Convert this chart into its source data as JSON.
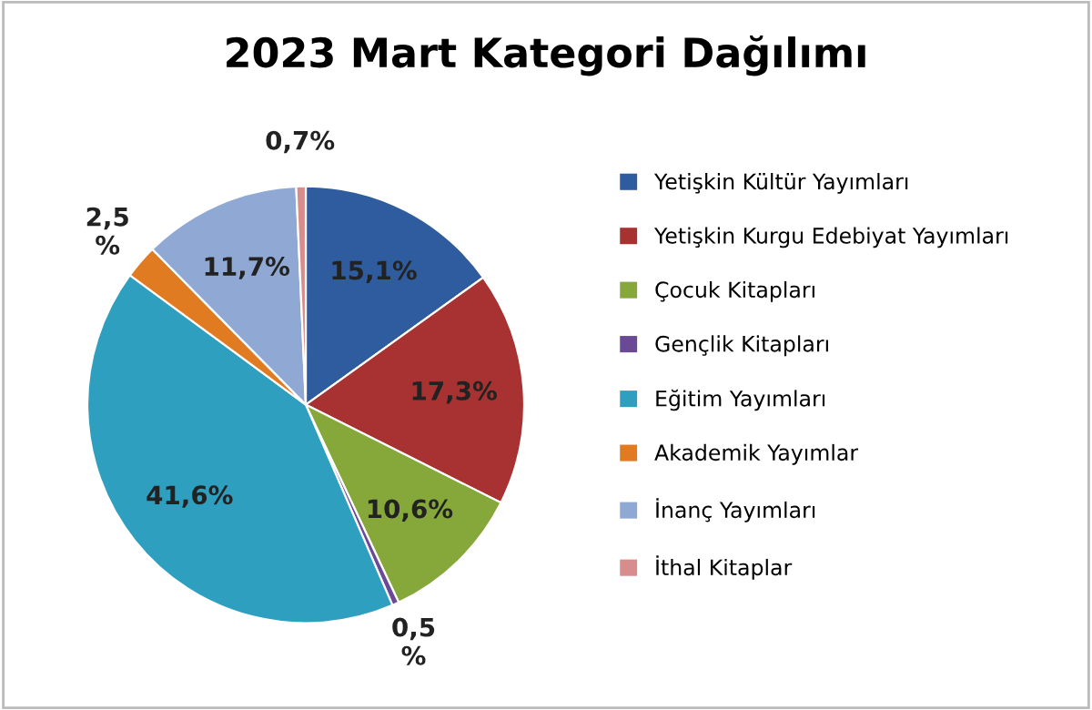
{
  "chart_data": {
    "type": "pie",
    "title": "2023 Mart Kategori Dağılımı",
    "categories": [
      "Yetişkin Kültür Yayımları",
      "Yetişkin Kurgu Edebiyat Yayımları",
      "Çocuk Kitapları",
      "Gençlik Kitapları",
      "Eğitim Yayımları",
      "Akademik Yayımlar",
      "İnanç Yayımları",
      "İthal Kitaplar"
    ],
    "values": [
      15.1,
      17.3,
      10.6,
      0.5,
      41.6,
      2.5,
      11.7,
      0.7
    ],
    "colors": [
      "#2e5c9e",
      "#a83232",
      "#86a83a",
      "#6a4a96",
      "#2f9fbf",
      "#e07b22",
      "#8fa9d4",
      "#d98c8c"
    ],
    "value_labels": [
      "15,1%",
      "17,3%",
      "10,6%",
      "0,5\n%",
      "41,6%",
      "2,5\n%",
      "11,7%",
      "0,7%"
    ],
    "legend": "right"
  }
}
